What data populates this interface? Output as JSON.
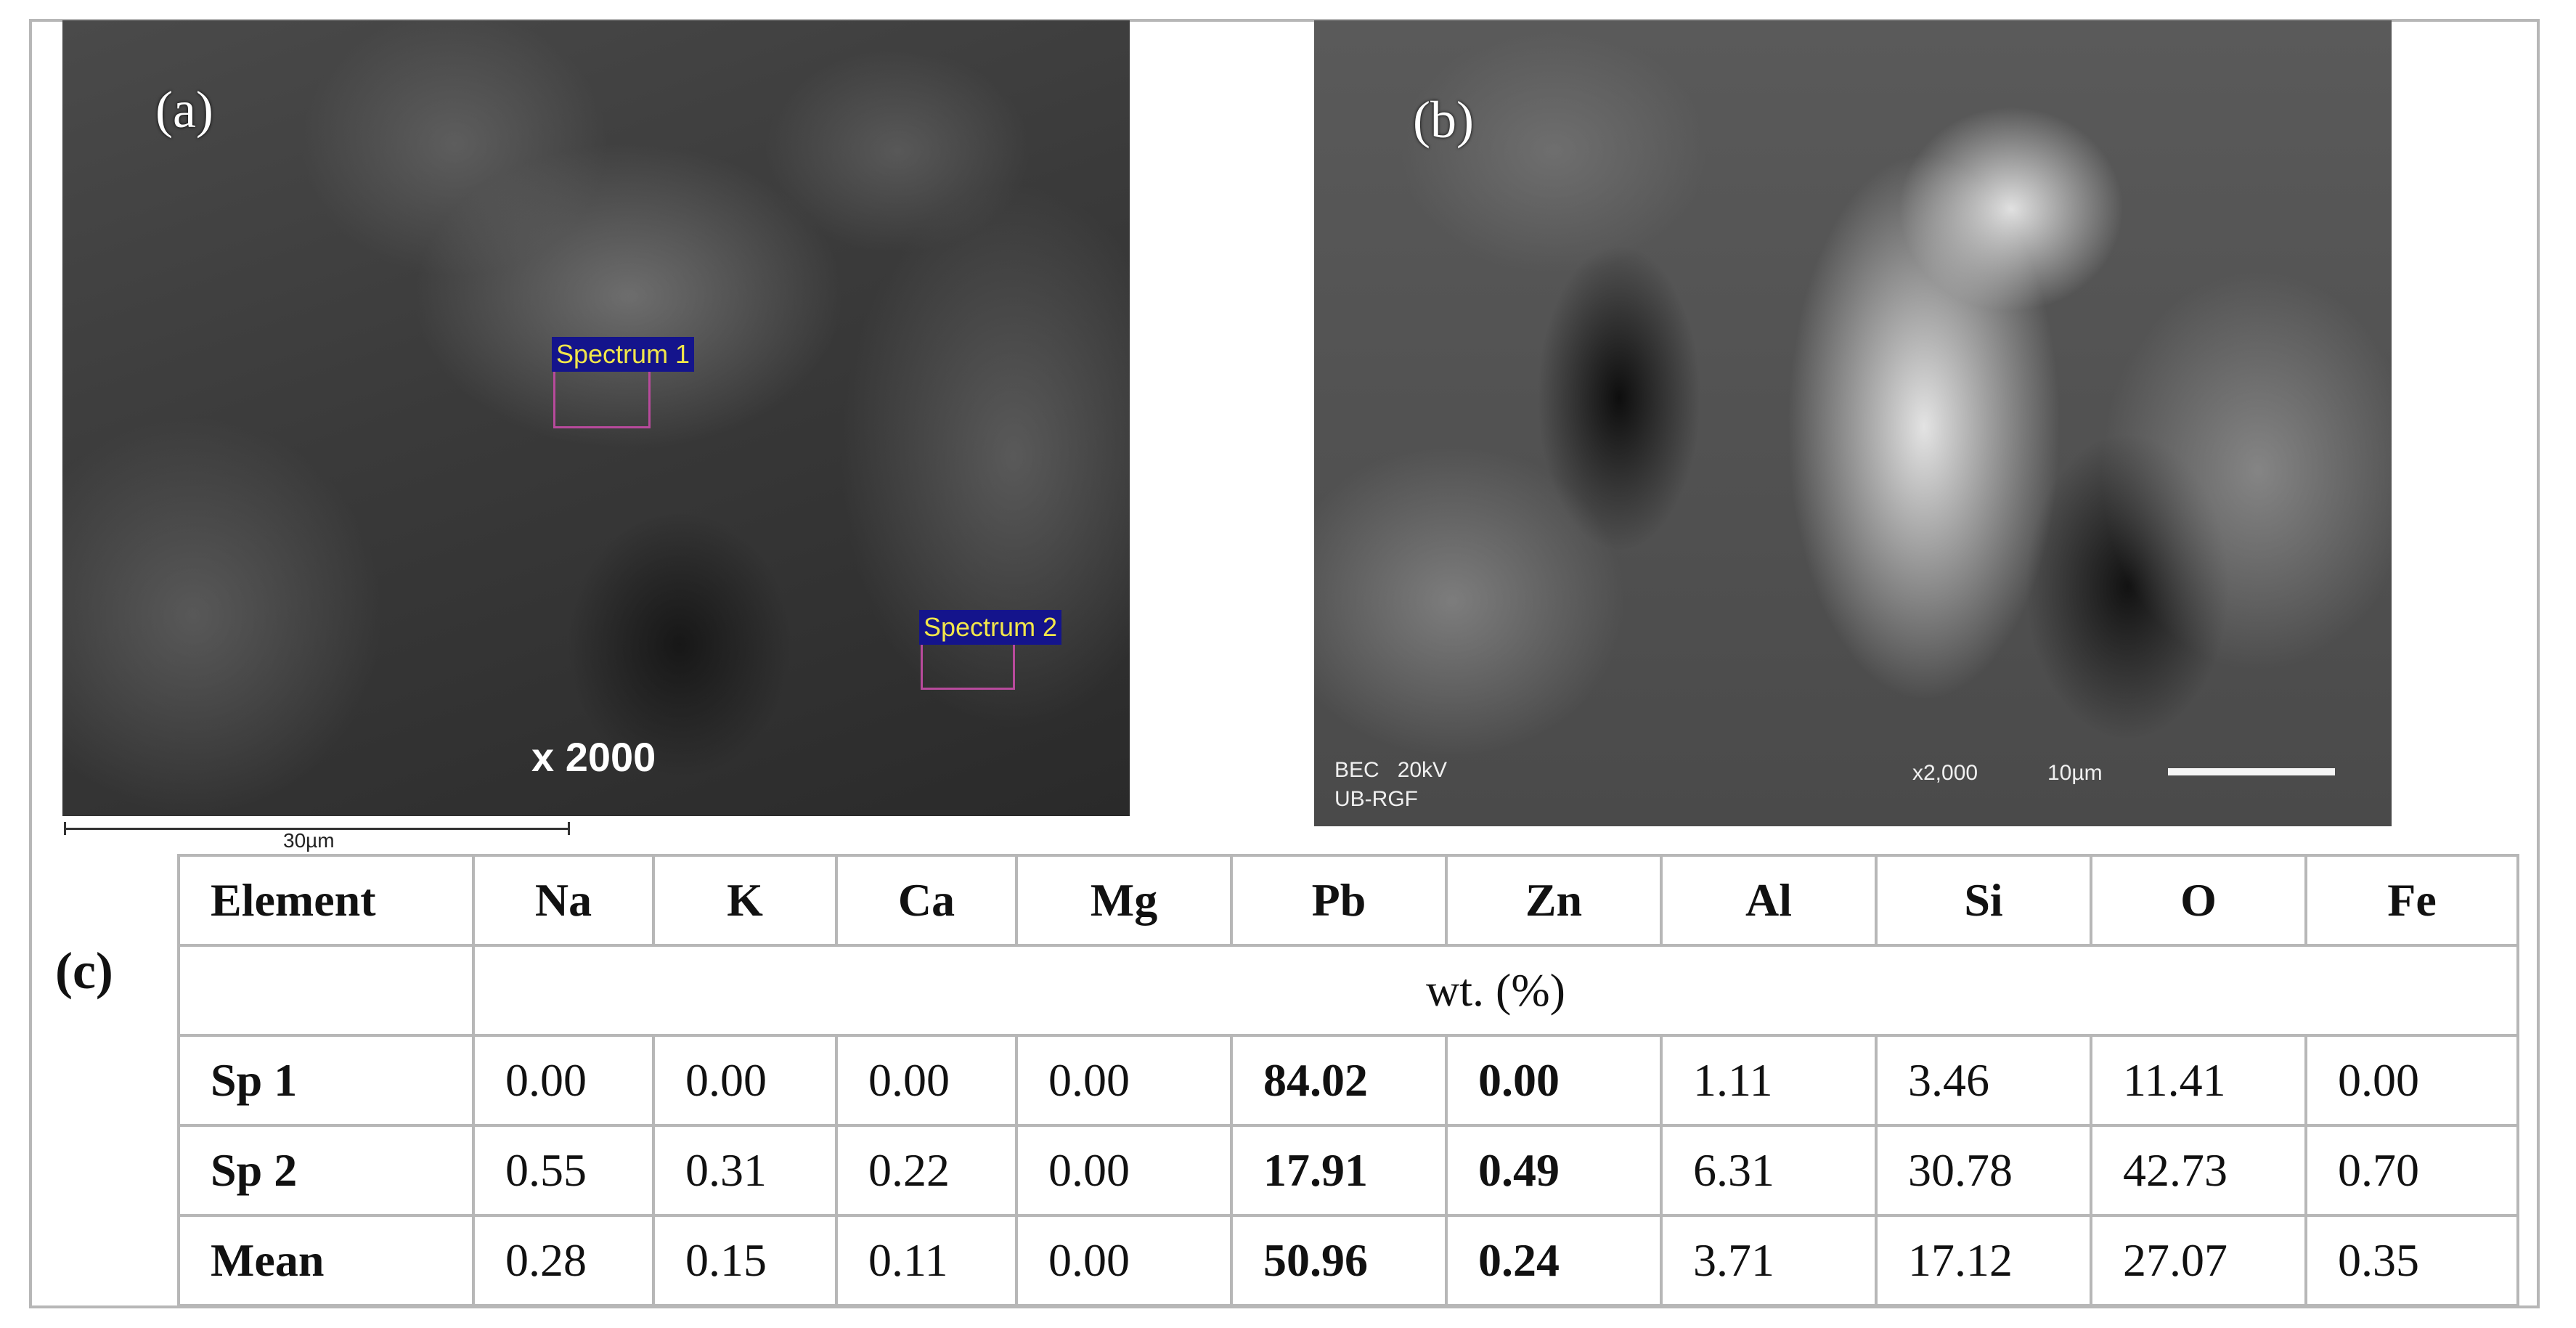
{
  "panels": {
    "a": {
      "label": "(a)",
      "spectrum_1": "Spectrum 1",
      "spectrum_2": "Spectrum 2",
      "magnification": "x 2000",
      "scale": "30µm"
    },
    "b": {
      "label": "(b)",
      "detector": "BEC   20kV",
      "lab": "UB-RGF",
      "magnification": "x2,000",
      "scale": "10µm"
    },
    "c": {
      "label": "(c)"
    }
  },
  "table": {
    "header": [
      "Element",
      "Na",
      "K",
      "Ca",
      "Mg",
      "Pb",
      "Zn",
      "Al",
      "Si",
      "O",
      "Fe"
    ],
    "unit": "wt. (%)",
    "rows": [
      {
        "label": "Sp 1",
        "values": [
          "0.00",
          "0.00",
          "0.00",
          "0.00",
          "84.02",
          "0.00",
          "1.11",
          "3.46",
          "11.41",
          "0.00"
        ]
      },
      {
        "label": "Sp 2",
        "values": [
          "0.55",
          "0.31",
          "0.22",
          "0.00",
          "17.91",
          "0.49",
          "6.31",
          "30.78",
          "42.73",
          "0.70"
        ]
      },
      {
        "label": "Mean",
        "values": [
          "0.28",
          "0.15",
          "0.11",
          "0.00",
          "50.96",
          "0.24",
          "3.71",
          "17.12",
          "27.07",
          "0.35"
        ]
      }
    ]
  }
}
